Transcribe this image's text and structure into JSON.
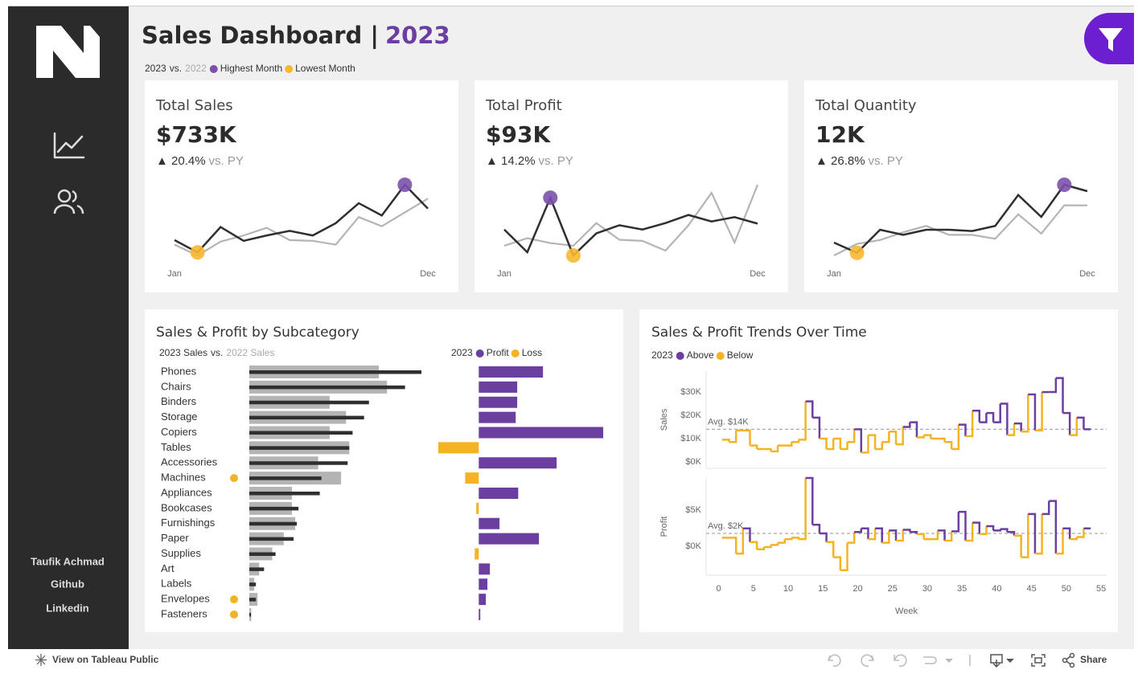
{
  "header": {
    "title": "Sales Dashboard |",
    "year": "2023",
    "legend": {
      "current": "2023",
      "sep": "vs.",
      "previous": "2022",
      "highest": {
        "label": "Highest Month",
        "color": "#7b52ab"
      },
      "lowest": {
        "label": "Lowest Month",
        "color": "#f7b731"
      }
    }
  },
  "sidebar": {
    "author": "Taufik Achmad",
    "links": [
      "Github",
      "Linkedin"
    ]
  },
  "toolbar": {
    "view": "View on Tableau Public",
    "share": "Share"
  },
  "chart_data": [
    {
      "type": "line",
      "title": "Total Sales",
      "value": "$733K",
      "change": "▲ 20.4%",
      "change_note": "vs. PY",
      "categories": [
        "Jan",
        null,
        null,
        null,
        null,
        null,
        null,
        null,
        null,
        null,
        null,
        "Dec"
      ],
      "series": [
        {
          "color": "#2f2f2f",
          "values": [
            42,
            26,
            59,
            41,
            48,
            54,
            48,
            64,
            90,
            74,
            114,
            83
          ]
        },
        {
          "color": "#b4b4b4",
          "values": [
            36,
            22,
            40,
            48,
            58,
            42,
            41,
            36,
            72,
            60,
            78,
            96
          ]
        }
      ]
    },
    {
      "type": "line",
      "title": "Total Profit",
      "value": "$93K",
      "change": "▲ 14.2%",
      "change_note": "vs. PY",
      "categories": [
        "Jan",
        null,
        null,
        null,
        null,
        null,
        null,
        null,
        null,
        null,
        null,
        "Dec"
      ],
      "series": [
        {
          "color": "#2f2f2f",
          "values": [
            7.5,
            3.3,
            13.4,
            2.7,
            6.8,
            8.3,
            7.5,
            8.7,
            10.2,
            9.0,
            9.8,
            8.6
          ]
        },
        {
          "color": "#b4b4b4",
          "values": [
            4.5,
            5.9,
            5.0,
            4.5,
            8.7,
            5.6,
            5.4,
            3.6,
            8.3,
            14.3,
            5.1,
            15.8
          ]
        }
      ]
    },
    {
      "type": "line",
      "title": "Total Quantity",
      "value": "12K",
      "change": "▲ 26.8%",
      "change_note": "vs. PY",
      "categories": [
        "Jan",
        null,
        null,
        null,
        null,
        null,
        null,
        null,
        null,
        null,
        null,
        "Dec"
      ],
      "series": [
        {
          "color": "#2f2f2f",
          "values": [
            600,
            408,
            840,
            744,
            840,
            840,
            816,
            912,
            1488,
            1080,
            1680,
            1560
          ]
        },
        {
          "color": "#b4b4b4",
          "values": [
            360,
            576,
            648,
            792,
            912,
            744,
            744,
            672,
            1128,
            768,
            1296,
            1296
          ]
        }
      ]
    },
    {
      "type": "bar",
      "title": "Sales & Profit by Subcategory",
      "legend_sep": "vs.",
      "categories": [
        "Phones",
        "Chairs",
        "Binders",
        "Storage",
        "Copiers",
        "Tables",
        "Accessories",
        "Machines",
        "Appliances",
        "Bookcases",
        "Furnishings",
        "Paper",
        "Supplies",
        "Art",
        "Labels",
        "Envelopes",
        "Fasteners"
      ],
      "series": [
        {
          "name": "2023 Sales",
          "color": "#2f2f2f",
          "values": [
            105,
            95,
            73,
            70,
            63,
            61,
            60,
            44,
            43,
            30,
            29,
            27,
            16,
            9,
            4,
            4,
            1
          ]
        },
        {
          "name": "2022 Sales",
          "color": "#b4b4b4",
          "values": [
            79,
            84,
            49,
            59,
            49,
            61,
            42,
            56,
            26,
            26,
            28,
            21,
            14,
            6,
            3,
            5,
            1.2
          ]
        }
      ],
      "profit": {
        "legend_title": "2023",
        "values": [
          12.7,
          7.6,
          7.6,
          7.3,
          24.6,
          -8.0,
          15.4,
          -2.7,
          7.8,
          -0.5,
          4.1,
          11.9,
          -0.8,
          2.2,
          1.7,
          1.4,
          0.3
        ],
        "positive": {
          "name": "Profit",
          "color": "#6b3fa0"
        },
        "negative": {
          "name": "Loss",
          "color": "#f5b324"
        }
      }
    },
    {
      "type": "step",
      "title": "Sales & Profit Trends Over Time",
      "legend_title": "2023",
      "above": {
        "name": "Above",
        "color": "#6b3fa0"
      },
      "below": {
        "name": "Below",
        "color": "#f5b324"
      },
      "xlabel": "Week",
      "x": [
        1,
        2,
        3,
        4,
        5,
        6,
        7,
        8,
        9,
        10,
        11,
        12,
        13,
        14,
        15,
        16,
        17,
        18,
        19,
        20,
        21,
        22,
        23,
        24,
        25,
        26,
        27,
        28,
        29,
        30,
        31,
        32,
        33,
        34,
        35,
        36,
        37,
        38,
        39,
        40,
        41,
        42,
        43,
        44,
        45,
        46,
        47,
        48,
        49,
        50,
        51,
        52,
        53
      ],
      "xlim": [
        -1.8,
        55.8
      ],
      "xticks": [
        0,
        5,
        10,
        15,
        20,
        25,
        30,
        35,
        40,
        45,
        50,
        55
      ],
      "panels": [
        {
          "ylabel": "Sales",
          "ylim": [
            -2.8,
            39
          ],
          "yticks": [
            {
              "value": 0,
              "label": "$0K"
            },
            {
              "value": 10,
              "label": "$10K"
            },
            {
              "value": 20,
              "label": "$20K"
            },
            {
              "value": 30,
              "label": "$30K"
            }
          ],
          "avg": {
            "value": 14,
            "label": "Avg. $14K"
          },
          "values": [
            9.5,
            8.5,
            13.5,
            13.5,
            7,
            5.5,
            5.5,
            4.5,
            7,
            7,
            8.5,
            9.5,
            26,
            19,
            10,
            5.5,
            10,
            5.5,
            8.5,
            14,
            4,
            11.5,
            5.5,
            8.5,
            13,
            7.5,
            15,
            17,
            10.5,
            11.5,
            10,
            10,
            8.5,
            5.5,
            16,
            11,
            22,
            17,
            21,
            17,
            25,
            11.5,
            16.5,
            13,
            29,
            13.5,
            30,
            30,
            36,
            21,
            11.5,
            19,
            14
          ]
        },
        {
          "ylabel": "Profit",
          "ylim": [
            -4,
            9.5
          ],
          "yticks": [
            {
              "value": 0,
              "label": "$0K"
            },
            {
              "value": 5,
              "label": "$5K"
            }
          ],
          "avg": {
            "value": 1.8,
            "label": "Avg. $2K"
          },
          "values": [
            1.2,
            1.2,
            -1.0,
            2.5,
            0.6,
            -0.4,
            -0.1,
            0.2,
            0.5,
            1.0,
            1.2,
            1.0,
            9.5,
            3.0,
            1.8,
            0.6,
            -1.5,
            -3.3,
            0.5,
            2.0,
            2.5,
            1.0,
            2.5,
            0.5,
            2.2,
            0.8,
            2.3,
            2.0,
            1.7,
            1.0,
            1.0,
            2.2,
            0.8,
            2.1,
            4.8,
            0.8,
            3.3,
            1.7,
            2.8,
            2.2,
            2.4,
            2.0,
            1.5,
            -1.5,
            4.5,
            -1.0,
            4.5,
            6.3,
            -1.0,
            2.5,
            1.0,
            1.3,
            2.5
          ]
        }
      ]
    }
  ]
}
